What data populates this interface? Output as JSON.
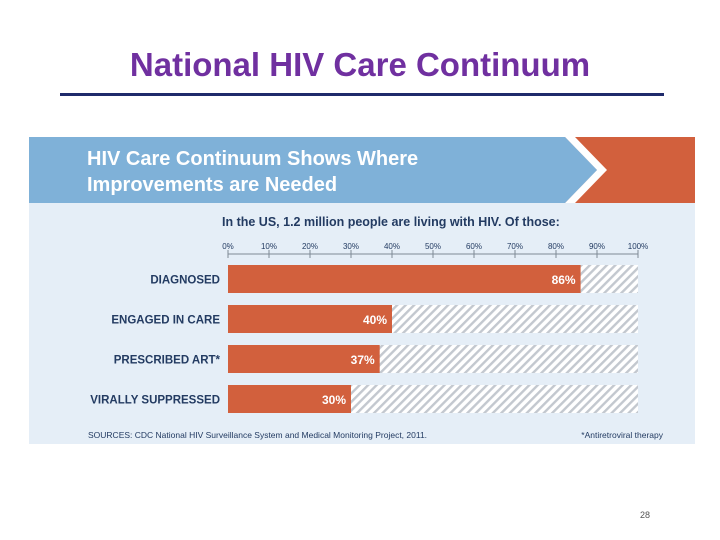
{
  "slide": {
    "title": "National HIV Care Continuum",
    "page_number": "28"
  },
  "banner": {
    "line1": "HIV Care Continuum Shows Where",
    "line2": "Improvements are Needed"
  },
  "colors": {
    "banner_blue": "#7fb1d8",
    "bar_orange": "#d2603d",
    "panel_bg": "#e5eef7",
    "title_purple": "#7030a0",
    "rule_navy": "#1f2a6b"
  },
  "footer": {
    "sources": "SOURCES: CDC National HIV Surveillance System and Medical Monitoring Project, 2011.",
    "footnote": "*Antiretroviral therapy"
  },
  "chart_data": {
    "type": "bar",
    "orientation": "horizontal",
    "title": "In the US, 1.2 million people are living with HIV.  Of those:",
    "categories": [
      "DIAGNOSED",
      "ENGAGED IN CARE",
      "PRESCRIBED ART*",
      "VIRALLY SUPPRESSED"
    ],
    "values": [
      86,
      40,
      37,
      30
    ],
    "value_labels": [
      "86%",
      "40%",
      "37%",
      "30%"
    ],
    "ticks": [
      0,
      10,
      20,
      30,
      40,
      50,
      60,
      70,
      80,
      90,
      100
    ],
    "tick_labels": [
      "0%",
      "10%",
      "20%",
      "30%",
      "40%",
      "50%",
      "60%",
      "70%",
      "80%",
      "90%",
      "100%"
    ],
    "xlim": [
      0,
      100
    ],
    "xlabel": "",
    "ylabel": "",
    "legend": false
  }
}
